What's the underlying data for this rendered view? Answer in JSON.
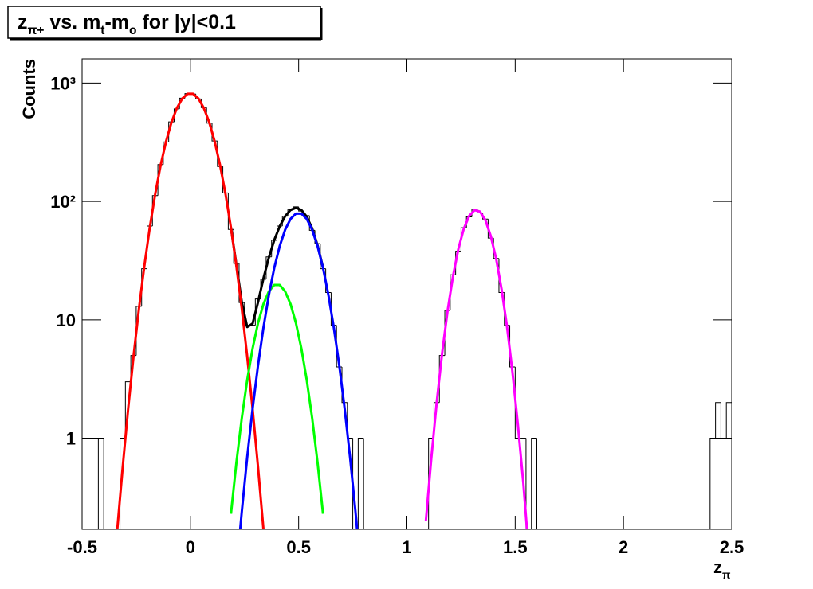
{
  "chart_data": {
    "type": "histogram",
    "title": [
      {
        "text": "z"
      },
      {
        "text": "π+",
        "sub": true
      },
      {
        "text": " vs. m"
      },
      {
        "text": "t",
        "sub": true
      },
      {
        "text": "-m"
      },
      {
        "text": "o",
        "sub": true
      },
      {
        "text": " for |y|<0.1"
      }
    ],
    "x_label": [
      {
        "text": "z"
      },
      {
        "text": "π",
        "sub": true
      }
    ],
    "y_label": "Counts",
    "log_y": true,
    "xlim": [
      -0.5,
      2.5
    ],
    "ylim": [
      0.17,
      1600
    ],
    "xticks": [
      -0.5,
      0,
      0.5,
      1,
      1.5,
      2,
      2.5
    ],
    "yticks": [
      1,
      10,
      {
        "value": 100,
        "label": "10²"
      },
      {
        "value": 1000,
        "label": "10³"
      }
    ],
    "color": "#000000",
    "bins": [
      -0.5,
      -0.475,
      -0.45,
      -0.425,
      -0.4,
      -0.375,
      -0.35,
      -0.325,
      -0.3,
      -0.275,
      -0.25,
      -0.225,
      -0.2,
      -0.175,
      -0.15,
      -0.125,
      -0.1,
      -0.075,
      -0.05,
      -0.025,
      0,
      0.025,
      0.05,
      0.075,
      0.1,
      0.125,
      0.15,
      0.175,
      0.2,
      0.225,
      0.25,
      0.275,
      0.3,
      0.325,
      0.35,
      0.375,
      0.4,
      0.425,
      0.45,
      0.475,
      0.5,
      0.525,
      0.55,
      0.575,
      0.6,
      0.625,
      0.65,
      0.675,
      0.7,
      0.725,
      0.75,
      0.775,
      0.8,
      0.825,
      0.85,
      0.875,
      0.9,
      0.925,
      0.95,
      0.975,
      1,
      1.025,
      1.05,
      1.075,
      1.1,
      1.125,
      1.15,
      1.175,
      1.2,
      1.225,
      1.25,
      1.275,
      1.3,
      1.325,
      1.35,
      1.375,
      1.4,
      1.425,
      1.45,
      1.475,
      1.5,
      1.525,
      1.55,
      1.575,
      1.6,
      1.625,
      1.65,
      1.675,
      1.7,
      1.725,
      1.75,
      1.775,
      1.8,
      1.825,
      1.85,
      1.875,
      1.9,
      1.925,
      1.95,
      1.975,
      2,
      2.025,
      2.05,
      2.075,
      2.1,
      2.125,
      2.15,
      2.175,
      2.2,
      2.225,
      2.25,
      2.275,
      2.3,
      2.325,
      2.35,
      2.375,
      2.4,
      2.425,
      2.45,
      2.475,
      2.5
    ],
    "values": [
      0,
      0,
      0,
      1,
      0,
      0,
      0,
      1,
      3,
      5,
      13,
      27,
      62,
      112,
      205,
      318,
      470,
      605,
      745,
      815,
      808,
      733,
      620,
      458,
      324,
      197,
      118,
      58,
      30,
      14,
      9,
      9,
      15,
      22,
      34,
      47,
      62,
      75,
      85,
      90,
      83,
      76,
      57,
      44,
      27,
      17,
      9,
      4,
      2,
      1,
      0,
      1,
      0,
      0,
      0,
      0,
      0,
      0,
      0,
      0,
      0,
      0,
      0,
      0,
      1,
      2,
      5,
      12,
      24,
      38,
      60,
      74,
      86,
      80,
      71,
      49,
      33,
      17,
      9,
      4,
      1,
      1,
      0,
      1,
      0,
      0,
      0,
      0,
      0,
      0,
      0,
      0,
      0,
      0,
      0,
      0,
      0,
      0,
      0,
      0,
      0,
      0,
      0,
      0,
      0,
      0,
      0,
      0,
      0,
      0,
      0,
      0,
      0,
      0,
      0,
      0,
      1,
      2,
      1,
      2
    ],
    "series": [
      {
        "type": "line",
        "color": "#000000",
        "x": [
          0.1875,
          0.2125,
          0.2375,
          0.2625,
          0.2875,
          0.3125,
          0.3375,
          0.3625,
          0.3875,
          0.4125,
          0.4375,
          0.4625,
          0.4875,
          0.5125,
          0.5375,
          0.5625,
          0.5875,
          0.6125
        ],
        "values": [
          60.2,
          29.2,
          14.1,
          8.7,
          9.3,
          14.1,
          22.4,
          33.6,
          47.2,
          61.6,
          75.0,
          84.7,
          88.4,
          84.7,
          74.2,
          59.1,
          42.5,
          27.7
        ]
      },
      {
        "type": "line",
        "color": "#ff0000",
        "x": [
          -0.3375,
          -0.3125,
          -0.2875,
          -0.2625,
          -0.2375,
          -0.2125,
          -0.1875,
          -0.1625,
          -0.1375,
          -0.1125,
          -0.0875,
          -0.0625,
          -0.0375,
          -0.0125,
          0.0125,
          0.0375,
          0.0625,
          0.0875,
          0.1125,
          0.1375,
          0.1625,
          0.1875,
          0.2125,
          0.2375,
          0.2625,
          0.2875,
          0.3125,
          0.3375
        ],
        "values": [
          0.17,
          0.57,
          1.76,
          4.9,
          12.4,
          28.5,
          60,
          115,
          201,
          320,
          464,
          613,
          739,
          811,
          811,
          739,
          613,
          464,
          320,
          201,
          115,
          60,
          28.5,
          12.4,
          4.9,
          1.76,
          0.57,
          0.17
        ]
      },
      {
        "type": "line",
        "color": "#00ff00",
        "x": [
          0.1875,
          0.2125,
          0.2375,
          0.2625,
          0.2875,
          0.3125,
          0.3375,
          0.3625,
          0.3875,
          0.4125,
          0.4375,
          0.4625,
          0.4875,
          0.5125,
          0.5375,
          0.5625,
          0.5875,
          0.6125
        ],
        "values": [
          0.23,
          0.62,
          1.48,
          3.1,
          5.74,
          9.4,
          13.6,
          17.4,
          19.7,
          19.7,
          17.4,
          13.6,
          9.4,
          5.74,
          3.1,
          1.48,
          0.62,
          0.23
        ]
      },
      {
        "type": "line",
        "color": "#0000ff",
        "x": [
          0.2125,
          0.2375,
          0.2625,
          0.2875,
          0.3125,
          0.3375,
          0.3625,
          0.3875,
          0.4125,
          0.4375,
          0.4625,
          0.4875,
          0.5125,
          0.5375,
          0.5625,
          0.5875,
          0.6125,
          0.6375,
          0.6625,
          0.6875,
          0.7125,
          0.7375,
          0.7625,
          0.7875
        ],
        "values": [
          0.075,
          0.24,
          0.69,
          1.78,
          4.13,
          8.6,
          16.2,
          27.5,
          41.9,
          57.6,
          71.1,
          79.0,
          79.0,
          71.1,
          57.6,
          41.9,
          27.5,
          16.2,
          8.6,
          4.13,
          1.78,
          0.69,
          0.24,
          0.075
        ]
      },
      {
        "type": "line",
        "color": "#ff00ff",
        "x": [
          1.0875,
          1.1125,
          1.1375,
          1.1625,
          1.1875,
          1.2125,
          1.2375,
          1.2625,
          1.2875,
          1.3125,
          1.3375,
          1.3625,
          1.3875,
          1.4125,
          1.4375,
          1.4625,
          1.4875,
          1.5125,
          1.5375,
          1.5625
        ],
        "values": [
          0.2,
          0.67,
          2.0,
          5.2,
          11.8,
          23.2,
          39.6,
          58.6,
          75.5,
          84.5,
          82.1,
          69.4,
          50.9,
          32.5,
          18.0,
          8.7,
          3.6,
          1.3,
          0.42,
          0.11
        ]
      }
    ]
  }
}
